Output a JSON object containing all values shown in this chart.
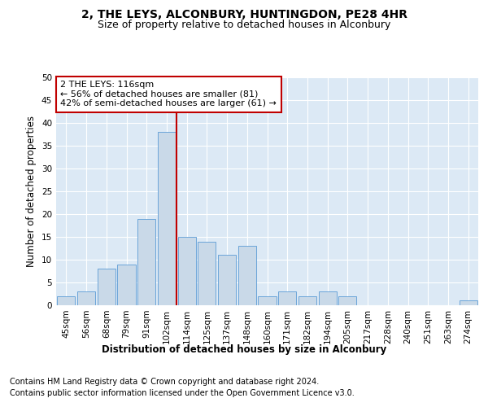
{
  "title": "2, THE LEYS, ALCONBURY, HUNTINGDON, PE28 4HR",
  "subtitle": "Size of property relative to detached houses in Alconbury",
  "xlabel": "Distribution of detached houses by size in Alconbury",
  "ylabel": "Number of detached properties",
  "categories": [
    "45sqm",
    "56sqm",
    "68sqm",
    "79sqm",
    "91sqm",
    "102sqm",
    "114sqm",
    "125sqm",
    "137sqm",
    "148sqm",
    "160sqm",
    "171sqm",
    "182sqm",
    "194sqm",
    "205sqm",
    "217sqm",
    "228sqm",
    "240sqm",
    "251sqm",
    "263sqm",
    "274sqm"
  ],
  "values": [
    2,
    3,
    8,
    9,
    19,
    38,
    15,
    14,
    11,
    13,
    2,
    3,
    2,
    3,
    2,
    0,
    0,
    0,
    0,
    0,
    1
  ],
  "bar_color": "#c9d9e8",
  "bar_edgecolor": "#5b9bd5",
  "vline_index": 6,
  "vline_color": "#c00000",
  "annotation_text": "2 THE LEYS: 116sqm\n← 56% of detached houses are smaller (81)\n42% of semi-detached houses are larger (61) →",
  "annotation_box_facecolor": "#ffffff",
  "annotation_box_edgecolor": "#c00000",
  "ylim": [
    0,
    50
  ],
  "yticks": [
    0,
    5,
    10,
    15,
    20,
    25,
    30,
    35,
    40,
    45,
    50
  ],
  "bg_color": "#dce9f5",
  "footer1": "Contains HM Land Registry data © Crown copyright and database right 2024.",
  "footer2": "Contains public sector information licensed under the Open Government Licence v3.0.",
  "title_fontsize": 10,
  "subtitle_fontsize": 9,
  "axis_label_fontsize": 8.5,
  "tick_fontsize": 7.5,
  "annotation_fontsize": 8,
  "footer_fontsize": 7
}
